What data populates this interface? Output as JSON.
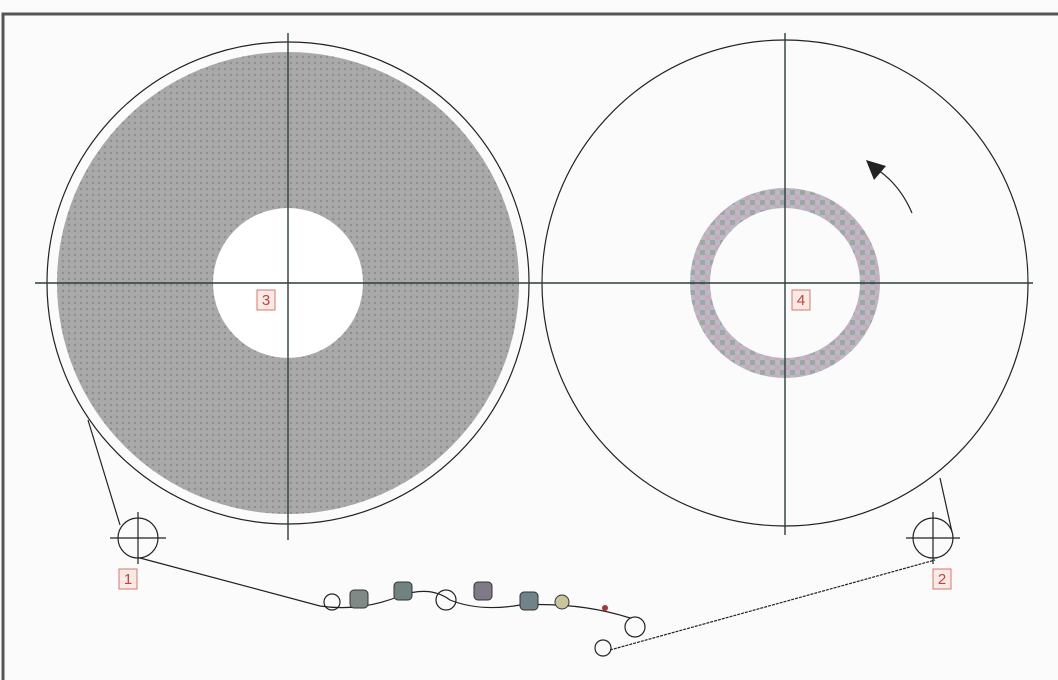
{
  "nodes": [
    {
      "label": "1"
    },
    {
      "label": "2"
    },
    {
      "label": "3"
    },
    {
      "label": "4"
    }
  ]
}
